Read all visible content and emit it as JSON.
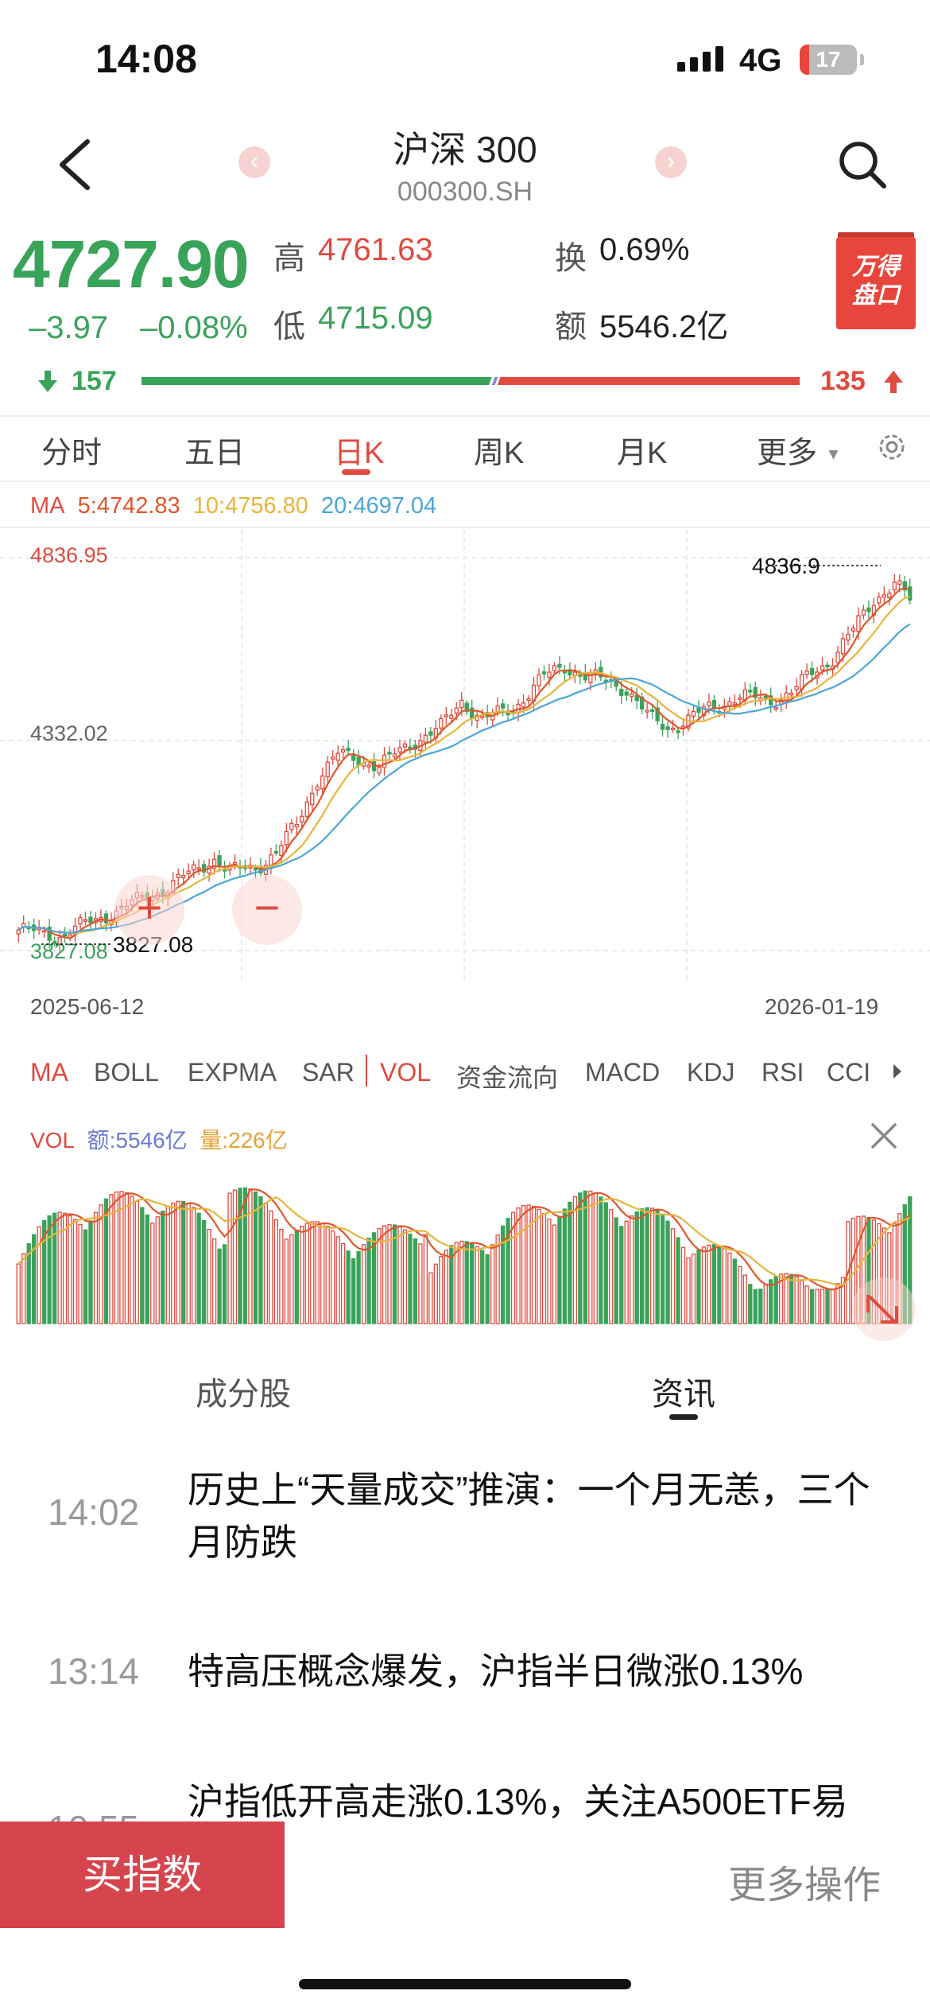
{
  "status_bar": {
    "time": "14:08",
    "network": "4G",
    "battery": "17",
    "battery_fraction": 0.17
  },
  "header": {
    "title": "沪深 300",
    "code": "000300.SH"
  },
  "quote": {
    "price": "4727.90",
    "change": "–3.97",
    "change_pct": "–0.08%",
    "high_label": "高",
    "high": "4761.63",
    "low_label": "低",
    "low": "4715.09",
    "turnover_label": "换",
    "turnover": "0.69%",
    "amount_label": "额",
    "amount": "5546.2亿",
    "decliners": "157",
    "advancers": "135",
    "badge_line1": "万得",
    "badge_line2": "盘口"
  },
  "tabs": [
    "分时",
    "五日",
    "日K",
    "周K",
    "月K",
    "更多"
  ],
  "active_tab": "日K",
  "ma": {
    "label": "MA",
    "ma5": "5:4742.83",
    "ma10": "10:4756.80",
    "ma20": "20:4697.04"
  },
  "colors": {
    "up": "#e04a3f",
    "down": "#3aa35a",
    "ma5": "#e0562b",
    "ma10": "#e8b43a",
    "ma20": "#4aa6d8",
    "vol_amount": "#6b7bd1",
    "vol_qty": "#e8a03a"
  },
  "chart_data": {
    "type": "candlestick",
    "y_max_label": "4836.95",
    "y_mid_label": "4332.02",
    "y_min_label": "3827.08",
    "high_marker": "4836.9",
    "low_marker": "3827.08",
    "ylim": [
      3827.08,
      4836.95
    ],
    "x_start": "2025-06-12",
    "x_end": "2026-01-19",
    "close_path": [
      [
        0,
        3880
      ],
      [
        8,
        3865
      ],
      [
        14,
        3900
      ],
      [
        20,
        3935
      ],
      [
        28,
        3985
      ],
      [
        34,
        4030
      ],
      [
        38,
        4065
      ],
      [
        41,
        4030
      ],
      [
        46,
        4040
      ],
      [
        50,
        4080
      ],
      [
        54,
        4150
      ],
      [
        58,
        4270
      ],
      [
        62,
        4330
      ],
      [
        66,
        4320
      ],
      [
        70,
        4300
      ],
      [
        76,
        4360
      ],
      [
        82,
        4400
      ],
      [
        86,
        4470
      ],
      [
        90,
        4420
      ],
      [
        96,
        4450
      ],
      [
        102,
        4530
      ],
      [
        106,
        4560
      ],
      [
        110,
        4530
      ],
      [
        114,
        4520
      ],
      [
        118,
        4500
      ],
      [
        122,
        4430
      ],
      [
        126,
        4400
      ],
      [
        130,
        4420
      ],
      [
        134,
        4450
      ],
      [
        140,
        4480
      ],
      [
        146,
        4470
      ],
      [
        150,
        4490
      ],
      [
        154,
        4540
      ],
      [
        158,
        4580
      ],
      [
        162,
        4650
      ],
      [
        166,
        4730
      ],
      [
        170,
        4770
      ],
      [
        173,
        4728
      ]
    ]
  },
  "indicator_tabs": [
    "MA",
    "BOLL",
    "EXPMA",
    "SAR",
    "VOL",
    "资金流向",
    "MACD",
    "KDJ",
    "RSI",
    "CCI"
  ],
  "vol": {
    "label": "VOL",
    "amount": "额:5546亿",
    "qty": "量:226亿"
  },
  "news_tabs": [
    "成分股",
    "资讯"
  ],
  "news": [
    {
      "time": "14:02",
      "title": "历史上“天量成交”推演：一个月无恙，三个月防跌"
    },
    {
      "time": "13:14",
      "title": "特高压概念爆发，沪指半日微涨0.13%"
    },
    {
      "time": "10:55",
      "title": "沪指低开高走涨0.13%，关注A500ETF易"
    }
  ],
  "bottom": {
    "buy": "买指数",
    "more": "更多操作"
  },
  "icons": {
    "back": "back-chevron-icon",
    "search": "search-icon",
    "settings": "gear-icon",
    "close": "close-icon",
    "arrow_down": "arrow-down-icon",
    "arrow_up": "arrow-up-icon",
    "zoom_in": "plus-icon",
    "zoom_out": "minus-icon",
    "expand": "expand-icon"
  }
}
